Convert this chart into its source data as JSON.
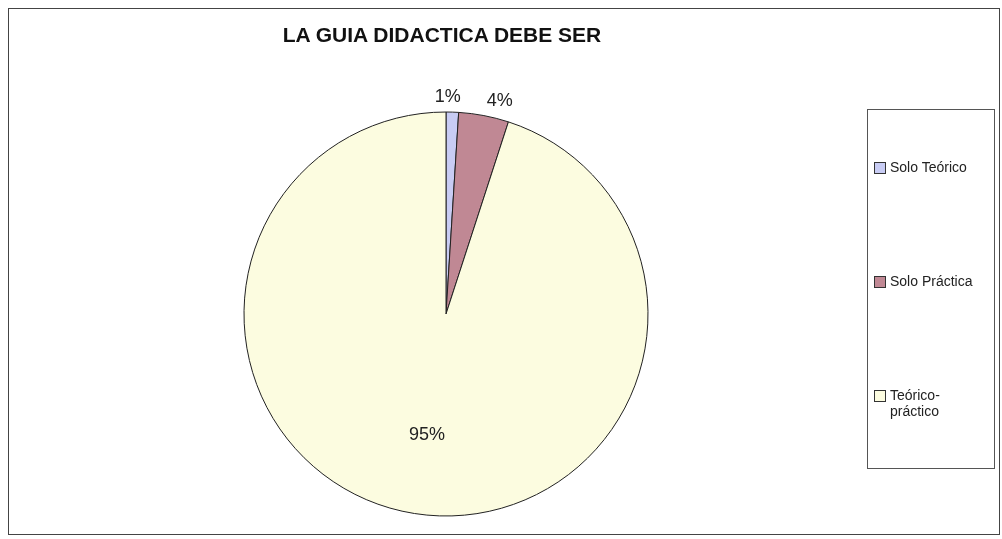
{
  "chart_data": {
    "type": "pie",
    "title": "LA GUIA DIDACTICA DEBE SER",
    "categories": [
      "Solo Teórico",
      "Solo Práctica",
      "Teórico-práctico"
    ],
    "values": [
      1,
      4,
      95
    ],
    "colors": [
      "#c8ccf4",
      "#c08894",
      "#fcfce0"
    ],
    "value_labels": [
      "1%",
      "4%",
      "95%"
    ],
    "legend": "right"
  }
}
